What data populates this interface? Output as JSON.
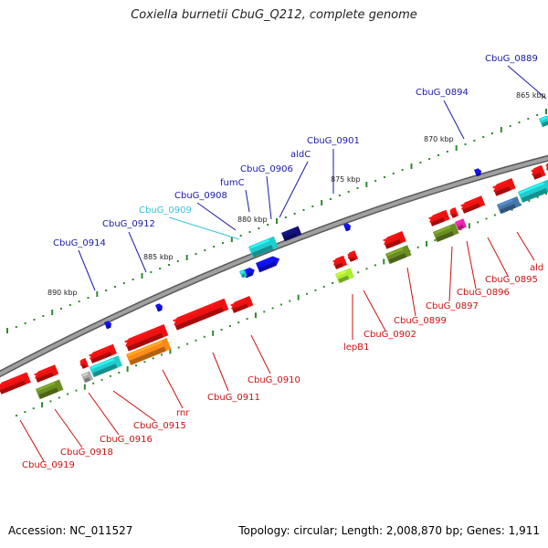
{
  "title": "Coxiella burnetii CbuG_Q212, complete genome",
  "footer": {
    "accession_label": "Accession: ",
    "accession": "NC_011527",
    "topology_label": "Topology: ",
    "topology": "circular",
    "length_label": "; Length: ",
    "length": "2,008,870 bp",
    "genes_label": "; Genes: ",
    "genes": "1,911"
  },
  "colors": {
    "backbone": "#8c8c8c",
    "tick": "#2e8b2e",
    "plus_label": "#1a1aa6",
    "plus_label_highlight": "#33c3dd",
    "minus_label": "#cc1111",
    "red": "#ee1111",
    "cyan": "#22cccc",
    "blue": "#1111ee",
    "navy": "#111177",
    "olive": "#6b8e23",
    "orange": "#ff8c1a",
    "lime": "#aaee33",
    "magenta": "#ee22aa",
    "steel": "#4477aa",
    "gray": "#aaaaaa"
  },
  "scale_labels": [
    "865 kbp",
    "870 kbp",
    "875 kbp",
    "880 kbp",
    "885 kbp",
    "890 kbp"
  ],
  "plus_labels": [
    "CbuG_0889",
    "CbuG_0894",
    "CbuG_0901",
    "aldC",
    "CbuG_0906",
    "fumC",
    "CbuG_0908",
    "CbuG_0909",
    "CbuG_0912",
    "CbuG_0914"
  ],
  "minus_labels": [
    "ald",
    "CbuG_0895",
    "CbuG_0896",
    "CbuG_0897",
    "CbuG_0899",
    "CbuG_0902",
    "lepB1",
    "CbuG_0910",
    "CbuG_0911",
    "rnr",
    "CbuG_0915",
    "CbuG_0916",
    "CbuG_0918",
    "CbuG_0919"
  ]
}
